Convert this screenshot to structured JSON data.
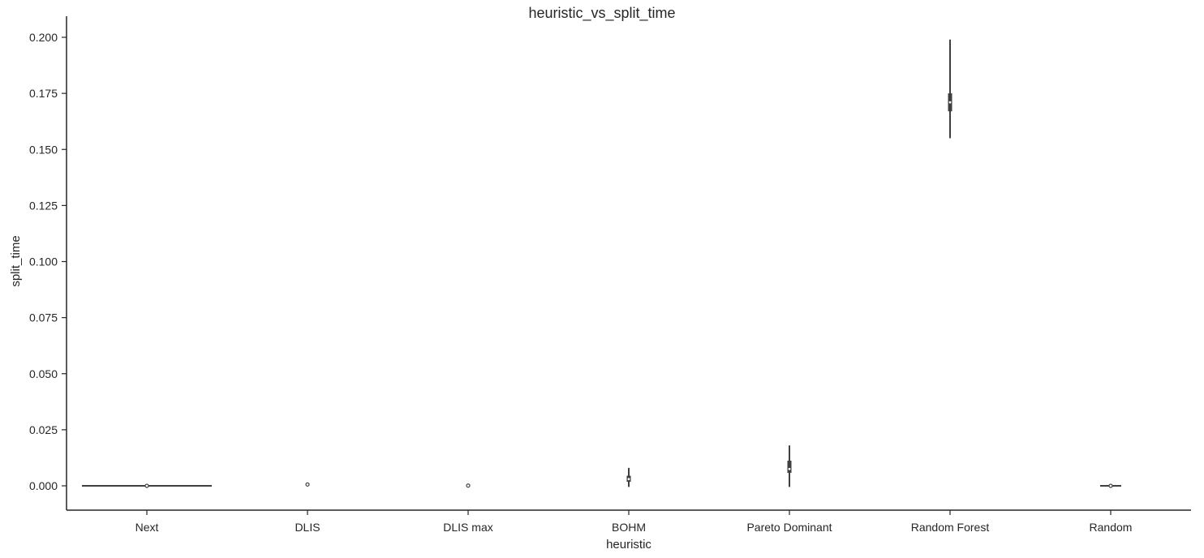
{
  "chart_data": {
    "type": "violin",
    "title": "heuristic_vs_split_time",
    "xlabel": "heuristic",
    "ylabel": "split_time",
    "ylim": [
      -0.011,
      0.209
    ],
    "yticks": [
      "0.000",
      "0.025",
      "0.050",
      "0.075",
      "0.100",
      "0.125",
      "0.150",
      "0.175",
      "0.200"
    ],
    "grid": false,
    "legend": "none",
    "line_color": "#3f3f3f",
    "categories": [
      "Next",
      "DLIS",
      "DLIS max",
      "BOHM",
      "Pareto Dominant",
      "Random Forest",
      "Random"
    ],
    "series": [
      {
        "category": "Next",
        "min": 0.0,
        "q1": 0.0,
        "median": 0.0,
        "q3": 0.0,
        "max": 0.0
      },
      {
        "category": "DLIS",
        "min": 0.0002,
        "q1": 0.0004,
        "median": 0.0006,
        "q3": 0.0008,
        "max": 0.0011
      },
      {
        "category": "DLIS max",
        "min": 0.0,
        "q1": 0.0,
        "median": 0.0001,
        "q3": 0.0001,
        "max": 0.0002
      },
      {
        "category": "BOHM",
        "min": -0.0005,
        "q1": 0.0018,
        "median": 0.003,
        "q3": 0.0045,
        "max": 0.008
      },
      {
        "category": "Pareto Dominant",
        "min": -0.0005,
        "q1": 0.0058,
        "median": 0.0075,
        "q3": 0.0112,
        "max": 0.018
      },
      {
        "category": "Random Forest",
        "min": 0.155,
        "q1": 0.167,
        "median": 0.171,
        "q3": 0.175,
        "max": 0.199
      },
      {
        "category": "Random",
        "min": -0.0003,
        "q1": 0.0,
        "median": 0.0,
        "q3": 0.0001,
        "max": 0.0003
      }
    ]
  }
}
